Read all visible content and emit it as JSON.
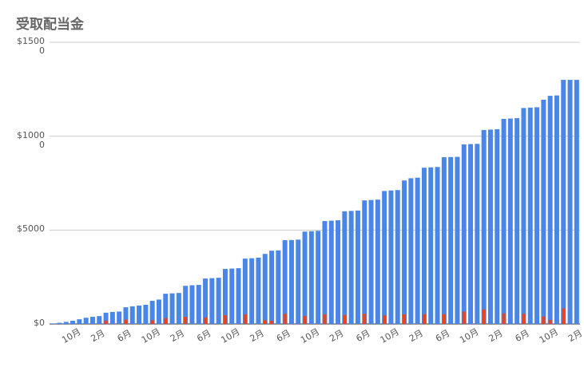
{
  "chart_data": {
    "type": "bar",
    "title": "受取配当金",
    "categories": [
      null,
      null,
      null,
      "10月",
      null,
      null,
      null,
      "2月",
      null,
      null,
      null,
      "6月",
      null,
      null,
      null,
      "10月",
      null,
      null,
      null,
      "2月",
      null,
      null,
      null,
      "6月",
      null,
      null,
      null,
      "10月",
      null,
      null,
      null,
      "2月",
      null,
      null,
      null,
      "6月",
      null,
      null,
      null,
      "10月",
      null,
      null,
      null,
      "2月",
      null,
      null,
      null,
      "6月",
      null,
      null,
      null,
      "10月",
      null,
      null,
      null,
      "2月",
      null,
      null,
      null,
      "6月",
      null,
      null,
      null,
      "10月",
      null,
      null,
      null,
      "2月",
      null,
      null,
      null,
      "6月",
      null,
      null,
      null,
      "10月",
      null,
      null,
      null,
      "2月"
    ],
    "series": [
      {
        "color": "#4a86e8",
        "values": [
          30,
          60,
          110,
          170,
          250,
          330,
          380,
          420,
          600,
          640,
          660,
          890,
          940,
          980,
          1020,
          1230,
          1300,
          1610,
          1630,
          1650,
          2030,
          2060,
          2080,
          2420,
          2440,
          2460,
          2930,
          2950,
          2970,
          3480,
          3500,
          3530,
          3730,
          3900,
          3920,
          4460,
          4470,
          4490,
          4920,
          4940,
          4960,
          5480,
          5500,
          5520,
          6000,
          6020,
          6040,
          6580,
          6600,
          6620,
          7080,
          7110,
          7130,
          7640,
          7760,
          7790,
          8320,
          8340,
          8360,
          8880,
          8890,
          8900,
          9560,
          9580,
          9590,
          10330,
          10350,
          10370,
          10920,
          10940,
          10960,
          11500,
          11520,
          11540,
          11940,
          12150,
          12170,
          13000,
          13000,
          13000
        ]
      },
      {
        "color": "#e8451e",
        "values": [
          0,
          0,
          0,
          0,
          0,
          0,
          0,
          0,
          180,
          0,
          0,
          230,
          0,
          0,
          0,
          200,
          0,
          310,
          0,
          0,
          380,
          0,
          0,
          340,
          0,
          0,
          470,
          0,
          0,
          510,
          0,
          0,
          200,
          170,
          0,
          540,
          0,
          0,
          430,
          0,
          0,
          520,
          0,
          0,
          480,
          0,
          0,
          540,
          0,
          0,
          460,
          0,
          0,
          510,
          0,
          0,
          520,
          0,
          0,
          520,
          0,
          0,
          660,
          0,
          0,
          770,
          0,
          0,
          560,
          0,
          0,
          540,
          0,
          0,
          400,
          210,
          0,
          830,
          0,
          0
        ]
      }
    ],
    "ylim": [
      0,
      15000
    ],
    "yticks": [
      {
        "value": 0,
        "label": "$0"
      },
      {
        "value": 5000,
        "label": "$5000"
      },
      {
        "value": 10000,
        "label": "$10000"
      },
      {
        "value": 15000,
        "label": "$15000"
      }
    ],
    "grid": true
  }
}
